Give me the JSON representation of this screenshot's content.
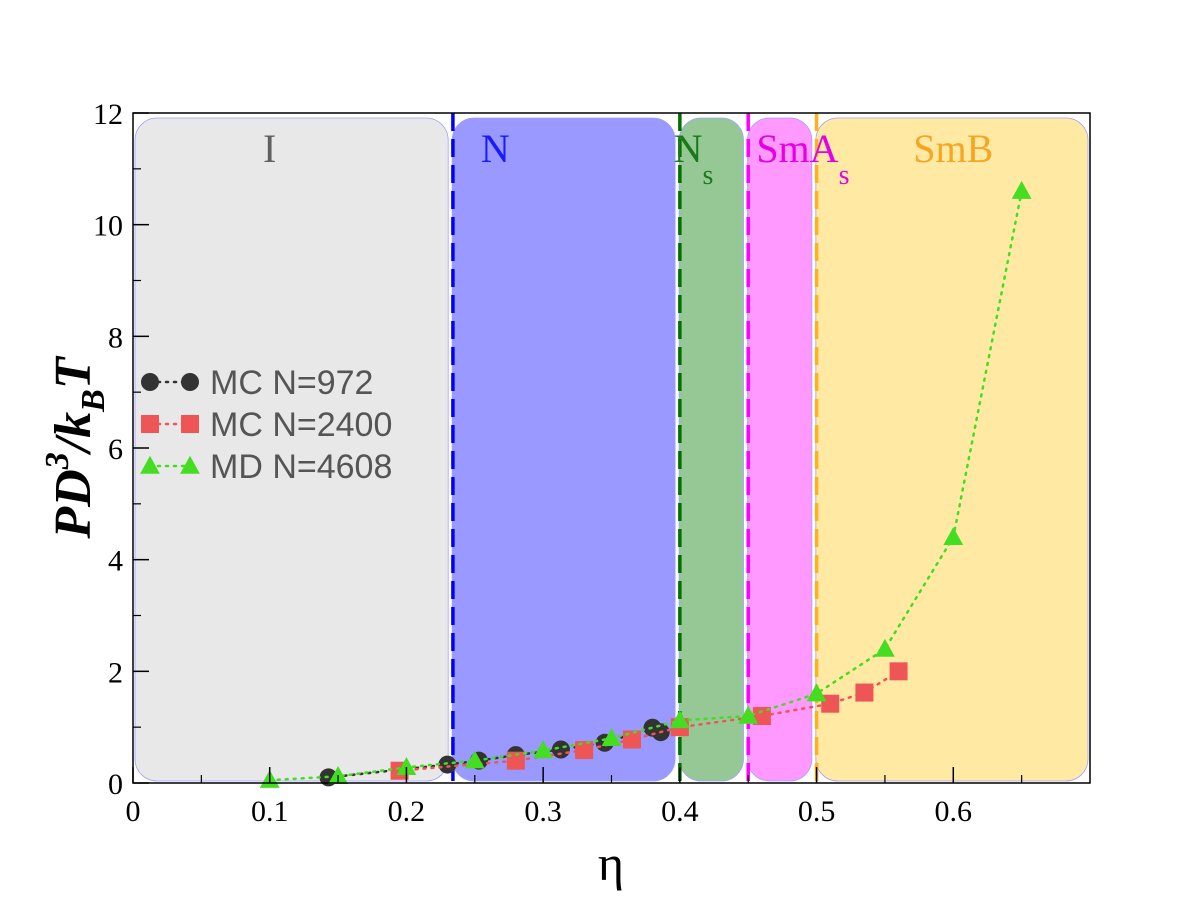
{
  "chart_data": {
    "type": "scatter",
    "title": "",
    "xlabel": "η",
    "ylabel": {
      "main": "PD",
      "sup": "3",
      "mid": "/k",
      "sub": "B",
      "end": "T"
    },
    "xlim": [
      0,
      0.7
    ],
    "ylim": [
      0,
      12
    ],
    "x_ticks": [
      "0",
      "0.1",
      "0.2",
      "0.3",
      "0.4",
      "0.5",
      "0.6"
    ],
    "x_tick_values": [
      0,
      0.1,
      0.2,
      0.3,
      0.4,
      0.5,
      0.6
    ],
    "y_ticks": [
      "0",
      "2",
      "4",
      "6",
      "8",
      "10",
      "12"
    ],
    "y_tick_values": [
      0,
      2,
      4,
      6,
      8,
      10,
      12
    ],
    "grid": false,
    "legend_position": "middle-left",
    "phases": [
      {
        "label": "I",
        "sub": "",
        "x0": 0.0,
        "x1": 0.232,
        "fill": "#e8e8e8",
        "text_color": "#606060"
      },
      {
        "label": "N",
        "sub": "",
        "x0": 0.232,
        "x1": 0.398,
        "fill": "#9999ff",
        "text_color": "#1a1aff"
      },
      {
        "label": "N",
        "sub": "s",
        "x0": 0.398,
        "x1": 0.448,
        "fill": "#96c896",
        "text_color": "#1a7a1a"
      },
      {
        "label": "SmA",
        "sub": "s",
        "x0": 0.448,
        "x1": 0.498,
        "fill": "#ff99ff",
        "text_color": "#e600e6"
      },
      {
        "label": "SmB",
        "sub": "",
        "x0": 0.498,
        "x1": 0.7,
        "fill": "#ffe9a3",
        "text_color": "#f5a623"
      }
    ],
    "boundaries": [
      {
        "x": 0.234,
        "color": "#0000ff"
      },
      {
        "x": 0.4,
        "color": "#007000"
      },
      {
        "x": 0.45,
        "color": "#ff00ff"
      },
      {
        "x": 0.5,
        "color": "#ffb020"
      }
    ],
    "series": [
      {
        "name": "MC N=972",
        "marker": "circle",
        "color": "#333333",
        "line_color": "#333333",
        "x": [
          0.143,
          0.23,
          0.253,
          0.28,
          0.313,
          0.345,
          0.38,
          0.386
        ],
        "y": [
          0.1,
          0.33,
          0.4,
          0.5,
          0.6,
          0.72,
          0.99,
          0.91
        ]
      },
      {
        "name": "MC N=2400",
        "marker": "square",
        "color": "#ee5555",
        "line_color": "#ee5555",
        "x": [
          0.195,
          0.28,
          0.33,
          0.365,
          0.4,
          0.46,
          0.51,
          0.535,
          0.56
        ],
        "y": [
          0.22,
          0.4,
          0.59,
          0.78,
          1.0,
          1.2,
          1.42,
          1.62,
          2.0
        ]
      },
      {
        "name": "MD N=4608",
        "marker": "triangle",
        "color": "#44dd22",
        "line_color": "#44dd22",
        "x": [
          0.1,
          0.15,
          0.2,
          0.25,
          0.3,
          0.35,
          0.4,
          0.45,
          0.5,
          0.55,
          0.6,
          0.65
        ],
        "y": [
          0.05,
          0.12,
          0.28,
          0.4,
          0.58,
          0.8,
          1.12,
          1.2,
          1.6,
          2.4,
          4.4,
          10.6
        ]
      }
    ]
  }
}
